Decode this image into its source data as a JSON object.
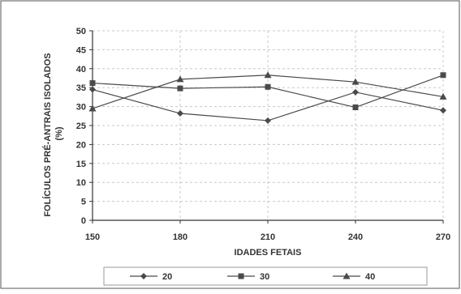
{
  "chart_data": {
    "type": "line",
    "x": [
      150,
      180,
      210,
      240,
      270
    ],
    "xlabel": "IDADES FETAIS",
    "ylabel_line1": "FOLÍCULOS PRÉ-ANTRAIS ISOLADOS",
    "ylabel_line2": "(%)",
    "ylim": [
      0,
      50
    ],
    "yticks": [
      0,
      5,
      10,
      15,
      20,
      25,
      30,
      35,
      40,
      45,
      50
    ],
    "xtick_labels": [
      "150",
      "180",
      "210",
      "240",
      "270"
    ],
    "grid": true,
    "legend_position": "bottom",
    "series": [
      {
        "name": "20",
        "marker": "diamond",
        "values": [
          34.5,
          28.2,
          26.3,
          33.8,
          29.0
        ]
      },
      {
        "name": "30",
        "marker": "square",
        "values": [
          36.2,
          34.8,
          35.2,
          29.8,
          38.3
        ]
      },
      {
        "name": "40",
        "marker": "triangle",
        "values": [
          29.5,
          37.2,
          38.3,
          36.5,
          32.6
        ]
      }
    ],
    "colors": {
      "line": "#4a4a4a",
      "grid": "#c8c8c8",
      "axis": "#333333",
      "background": "#ffffff"
    }
  }
}
